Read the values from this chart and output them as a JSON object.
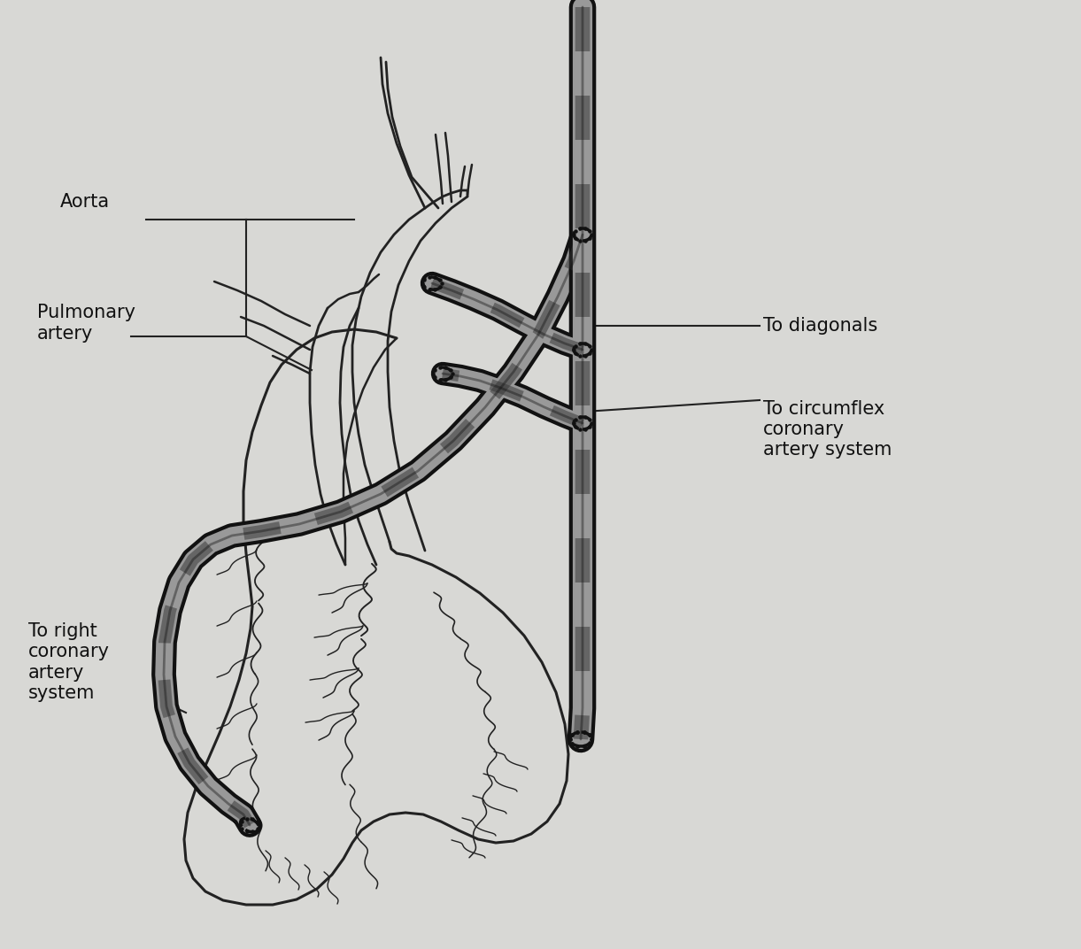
{
  "bg_color": "#d8d8d5",
  "line_color": "#222222",
  "text_color": "#111111",
  "labels": {
    "aorta": "Aorta",
    "pulmonary": "Pulmonary\nartery",
    "right_coronary": "To right\ncoronary\nartery\nsystem",
    "diagonals": "To diagonals",
    "circumflex": "To circumflex\ncoronary\nartery system"
  },
  "figsize": [
    12.21,
    10.72
  ],
  "dpi": 100,
  "heart_outline": [
    [
      290,
      320,
      345,
      362,
      370,
      368,
      358,
      345,
      332
    ],
    [
      418,
      410,
      400,
      388,
      370,
      350,
      335,
      322,
      318
    ]
  ],
  "graft_lw_outer": 16,
  "graft_lw_mid": 10,
  "graft_lw_inner": 5
}
